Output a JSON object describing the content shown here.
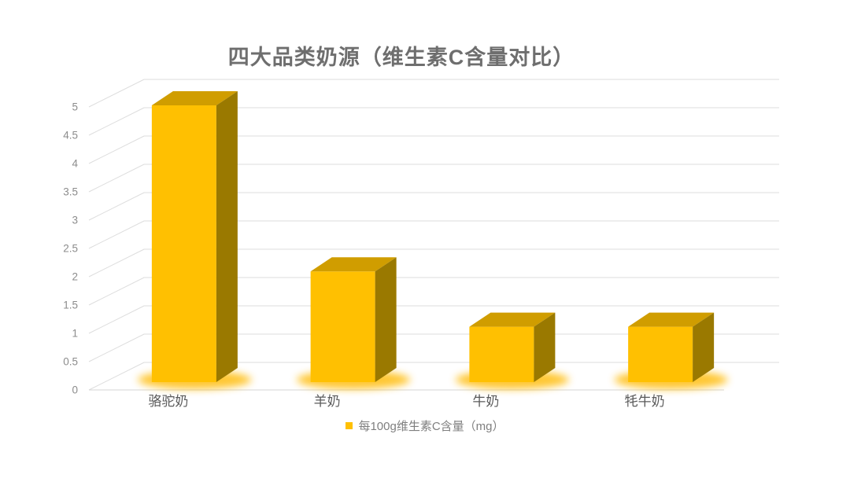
{
  "chart_data": {
    "type": "bar",
    "variant": "3d-column",
    "title": "四大品类奶源（维生素C含量对比）",
    "categories": [
      "骆驼奶",
      "羊奶",
      "牛奶",
      "牦牛奶"
    ],
    "series": [
      {
        "name": "每100g维生素C含量（mg）",
        "values": [
          5,
          2,
          1,
          1
        ]
      }
    ],
    "xlabel": "",
    "ylabel": "",
    "ylim": [
      0,
      5
    ],
    "ytick_step": 0.5,
    "yticks": [
      "0",
      "0.5",
      "1",
      "1.5",
      "2",
      "2.5",
      "3",
      "3.5",
      "4",
      "4.5",
      "5"
    ],
    "grid": true,
    "legend_position": "bottom",
    "background": "#FFFFFF",
    "colors": {
      "bar_front": "#FFC001",
      "bar_top": "#D09D00",
      "bar_side": "#9A7900",
      "bar_glow": "#FFB900",
      "gridline": "#DCDCDC",
      "axis_line": "#D6D6D6",
      "title_text": "#6E6E6E",
      "tick_text": "#8C8C8C",
      "category_text": "#5A5A5A",
      "legend_text": "#7F7F7F"
    }
  }
}
